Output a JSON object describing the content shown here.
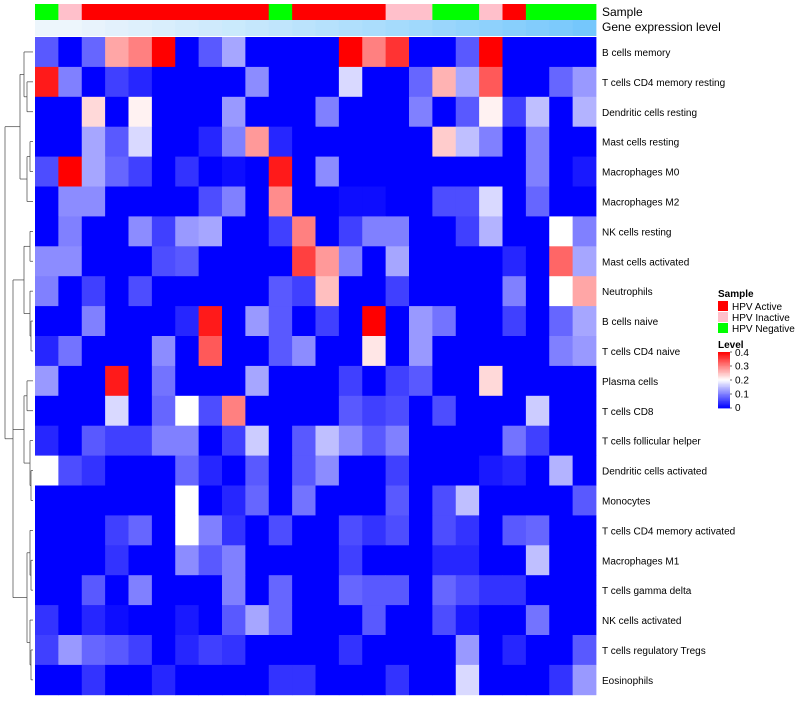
{
  "chart_data": {
    "type": "heatmap",
    "annotation_labels": [
      "Sample",
      "Gene expression level"
    ],
    "sample_groups": [
      "Negative",
      "Inactive",
      "Active",
      "Active",
      "Active",
      "Active",
      "Active",
      "Active",
      "Active",
      "Active",
      "Negative",
      "Active",
      "Active",
      "Active",
      "Active",
      "Inactive",
      "Inactive",
      "Negative",
      "Negative",
      "Inactive",
      "Active",
      "Negative",
      "Negative",
      "Negative"
    ],
    "expression_colors": [
      "#edf6fc",
      "#edf6fc",
      "#e8f3fc",
      "#e3f1fc",
      "#def0fc",
      "#d9eefc",
      "#d4ecfc",
      "#cfeafc",
      "#caeafc",
      "#c5e7fc",
      "#c0e5fc",
      "#bbe3fc",
      "#b6e1fc",
      "#b0dffc",
      "#abddfc",
      "#a5dbfc",
      "#a0d9fc",
      "#9ad6fc",
      "#94d4fc",
      "#8ed1fc",
      "#88cffc",
      "#82ccfc",
      "#7ccafc",
      "#75c7fc"
    ],
    "rows": [
      "B cells memory",
      "T cells CD4 memory resting",
      "Dendritic cells resting",
      "Mast cells resting",
      "Macrophages M0",
      "Macrophages M2",
      "NK cells resting",
      "Mast cells activated",
      "Neutrophils",
      "B cells naive",
      "T cells CD4 naive",
      "Plasma cells",
      "T cells CD8",
      "T cells follicular helper",
      "Dendritic cells activated",
      "Monocytes",
      "T cells CD4 memory activated",
      "Macrophages M1",
      "T cells gamma delta",
      "NK cells activated",
      "T cells regulatory  Tregs",
      "Eosinophils"
    ],
    "values": [
      [
        0.07,
        0.0,
        0.08,
        0.27,
        0.3,
        0.4,
        0.0,
        0.07,
        0.13,
        0.0,
        0.0,
        0.0,
        0.0,
        0.4,
        0.3,
        0.36,
        0.0,
        0.0,
        0.07,
        0.4,
        0.0,
        0.0,
        0.0,
        0.0
      ],
      [
        0.38,
        0.1,
        0.0,
        0.05,
        0.03,
        0.0,
        0.0,
        0.0,
        0.0,
        0.11,
        0.0,
        0.0,
        0.0,
        0.17,
        0.0,
        0.0,
        0.08,
        0.26,
        0.13,
        0.33,
        0.0,
        0.0,
        0.08,
        0.12
      ],
      [
        0.0,
        0.0,
        0.23,
        0.0,
        0.21,
        0.0,
        0.0,
        0.0,
        0.12,
        0.0,
        0.0,
        0.0,
        0.1,
        0.0,
        0.0,
        0.0,
        0.1,
        0.0,
        0.07,
        0.21,
        0.05,
        0.15,
        0.0,
        0.14
      ],
      [
        0.0,
        0.0,
        0.13,
        0.07,
        0.17,
        0.0,
        0.0,
        0.03,
        0.1,
        0.28,
        0.03,
        0.0,
        0.0,
        0.0,
        0.0,
        0.0,
        0.0,
        0.24,
        0.15,
        0.1,
        0.0,
        0.1,
        0.0,
        0.0
      ],
      [
        0.06,
        0.4,
        0.13,
        0.08,
        0.05,
        0.0,
        0.04,
        0.0,
        0.01,
        0.0,
        0.38,
        0.0,
        0.11,
        0.0,
        0.0,
        0.0,
        0.0,
        0.0,
        0.0,
        0.0,
        0.0,
        0.1,
        0.0,
        0.02
      ],
      [
        0.0,
        0.11,
        0.11,
        0.0,
        0.0,
        0.0,
        0.0,
        0.06,
        0.1,
        0.0,
        0.29,
        0.0,
        0.0,
        0.01,
        0.01,
        0.0,
        0.0,
        0.06,
        0.06,
        0.17,
        0.0,
        0.08,
        0.0,
        0.0
      ],
      [
        0.0,
        0.1,
        0.0,
        0.0,
        0.11,
        0.05,
        0.12,
        0.13,
        0.0,
        0.0,
        0.05,
        0.3,
        0.0,
        0.05,
        0.1,
        0.1,
        0.0,
        0.0,
        0.05,
        0.14,
        0.0,
        0.0,
        0.2,
        0.1
      ],
      [
        0.11,
        0.11,
        0.0,
        0.0,
        0.0,
        0.06,
        0.07,
        0.0,
        0.0,
        0.0,
        0.0,
        0.35,
        0.28,
        0.1,
        0.0,
        0.13,
        0.0,
        0.0,
        0.0,
        0.0,
        0.03,
        0.0,
        0.32,
        0.13
      ],
      [
        0.1,
        0.0,
        0.05,
        0.0,
        0.06,
        0.0,
        0.0,
        0.0,
        0.0,
        0.0,
        0.07,
        0.05,
        0.25,
        0.0,
        0.0,
        0.05,
        0.0,
        0.0,
        0.0,
        0.0,
        0.1,
        0.0,
        0.2,
        0.27
      ],
      [
        0.0,
        0.0,
        0.1,
        0.0,
        0.0,
        0.0,
        0.03,
        0.38,
        0.0,
        0.12,
        0.07,
        0.0,
        0.05,
        0.0,
        0.4,
        0.0,
        0.12,
        0.09,
        0.0,
        0.0,
        0.05,
        0.0,
        0.08,
        0.13
      ],
      [
        0.03,
        0.09,
        0.0,
        0.0,
        0.0,
        0.11,
        0.0,
        0.33,
        0.0,
        0.0,
        0.07,
        0.11,
        0.0,
        0.0,
        0.22,
        0.0,
        0.12,
        0.0,
        0.0,
        0.0,
        0.0,
        0.0,
        0.1,
        0.12
      ],
      [
        0.12,
        0.0,
        0.0,
        0.38,
        0.0,
        0.09,
        0.0,
        0.0,
        0.0,
        0.13,
        0.0,
        0.0,
        0.0,
        0.05,
        0.0,
        0.05,
        0.07,
        0.0,
        0.0,
        0.23,
        0.0,
        0.0,
        0.0,
        0.0
      ],
      [
        0.0,
        0.0,
        0.0,
        0.17,
        0.0,
        0.08,
        0.2,
        0.06,
        0.3,
        0.0,
        0.0,
        0.0,
        0.0,
        0.07,
        0.05,
        0.06,
        0.0,
        0.06,
        0.0,
        0.0,
        0.0,
        0.16,
        0.0,
        0.0
      ],
      [
        0.03,
        0.0,
        0.07,
        0.05,
        0.05,
        0.1,
        0.1,
        0.0,
        0.05,
        0.16,
        0.0,
        0.07,
        0.15,
        0.11,
        0.07,
        0.1,
        0.0,
        0.0,
        0.0,
        0.0,
        0.09,
        0.05,
        0.0,
        0.0
      ],
      [
        0.2,
        0.06,
        0.04,
        0.0,
        0.0,
        0.0,
        0.08,
        0.03,
        0.0,
        0.07,
        0.0,
        0.07,
        0.11,
        0.0,
        0.0,
        0.05,
        0.0,
        0.0,
        0.0,
        0.02,
        0.03,
        0.0,
        0.14,
        0.0
      ],
      [
        0.0,
        0.0,
        0.0,
        0.0,
        0.0,
        0.0,
        0.2,
        0.0,
        0.03,
        0.08,
        0.0,
        0.09,
        0.0,
        0.0,
        0.0,
        0.07,
        0.0,
        0.06,
        0.15,
        0.0,
        0.0,
        0.0,
        0.0,
        0.07
      ],
      [
        0.0,
        0.0,
        0.0,
        0.05,
        0.08,
        0.0,
        0.2,
        0.1,
        0.04,
        0.0,
        0.06,
        0.0,
        0.0,
        0.06,
        0.04,
        0.06,
        0.0,
        0.06,
        0.04,
        0.0,
        0.07,
        0.08,
        0.0,
        0.0
      ],
      [
        0.0,
        0.0,
        0.0,
        0.04,
        0.0,
        0.0,
        0.11,
        0.07,
        0.1,
        0.0,
        0.0,
        0.0,
        0.0,
        0.05,
        0.0,
        0.0,
        0.0,
        0.03,
        0.03,
        0.0,
        0.0,
        0.15,
        0.0,
        0.0
      ],
      [
        0.0,
        0.0,
        0.07,
        0.0,
        0.1,
        0.0,
        0.0,
        0.0,
        0.1,
        0.0,
        0.08,
        0.0,
        0.0,
        0.08,
        0.07,
        0.07,
        0.0,
        0.08,
        0.06,
        0.04,
        0.04,
        0.0,
        0.0,
        0.0
      ],
      [
        0.04,
        0.0,
        0.03,
        0.01,
        0.0,
        0.0,
        0.02,
        0.0,
        0.07,
        0.13,
        0.08,
        0.0,
        0.0,
        0.0,
        0.07,
        0.0,
        0.0,
        0.06,
        0.02,
        0.0,
        0.0,
        0.09,
        0.0,
        0.0
      ],
      [
        0.05,
        0.12,
        0.08,
        0.07,
        0.05,
        0.0,
        0.03,
        0.05,
        0.04,
        0.0,
        0.0,
        0.0,
        0.0,
        0.04,
        0.0,
        0.0,
        0.0,
        0.0,
        0.12,
        0.0,
        0.03,
        0.0,
        0.0,
        0.07
      ],
      [
        0.0,
        0.0,
        0.04,
        0.0,
        0.0,
        0.03,
        0.0,
        0.0,
        0.0,
        0.0,
        0.04,
        0.04,
        0.0,
        0.0,
        0.0,
        0.04,
        0.0,
        0.0,
        0.17,
        0.0,
        0.0,
        0.0,
        0.04,
        0.12
      ]
    ],
    "legend": {
      "sample_title": "Sample",
      "sample_entries": [
        {
          "key": "Active",
          "label": "HPV Active",
          "color": "#ff0000"
        },
        {
          "key": "Inactive",
          "label": "HPV Inactive",
          "color": "#ffc0cb"
        },
        {
          "key": "Negative",
          "label": "HPV Negative",
          "color": "#00ff00"
        }
      ],
      "level_title": "Level",
      "level_ticks": [
        0.4,
        0.3,
        0.2,
        0.1,
        0
      ],
      "level_tick_labels": [
        "0.4",
        "0.3",
        "0.2",
        "0.1",
        "0"
      ]
    },
    "color_scale": {
      "min": 0,
      "max": 0.4,
      "low": "#0000ff",
      "mid": "#ffffff",
      "high": "#ff0000"
    },
    "dendrogram": "rows",
    "legend_placement": "right"
  }
}
